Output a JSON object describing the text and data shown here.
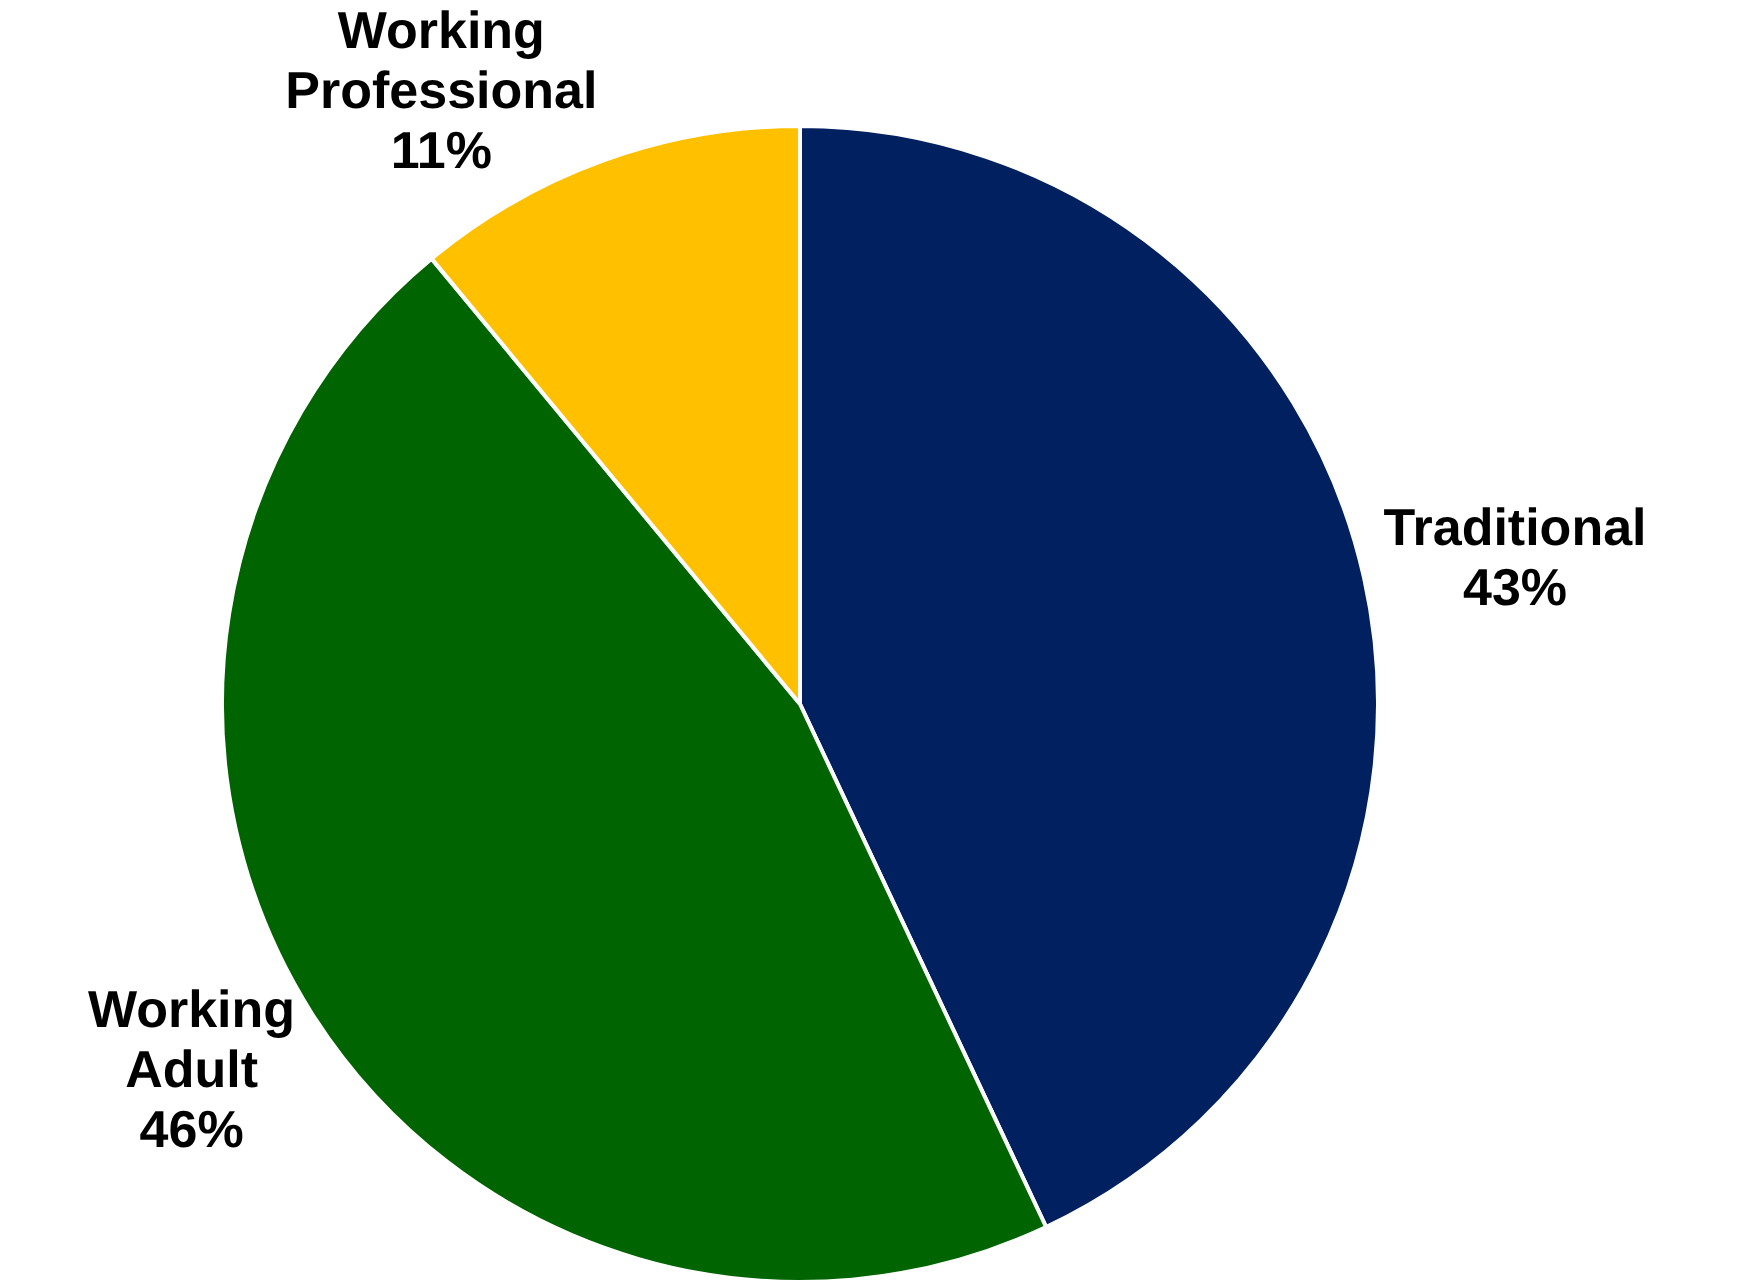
{
  "chart_data": {
    "type": "pie",
    "categories": [
      "Traditional",
      "Working Adult",
      "Working Professional"
    ],
    "values": [
      43,
      46,
      11
    ],
    "colors": [
      "#002060",
      "#006400",
      "#ffc000"
    ],
    "value_labels": [
      "43%",
      "46%",
      "11%"
    ],
    "legend": false
  }
}
